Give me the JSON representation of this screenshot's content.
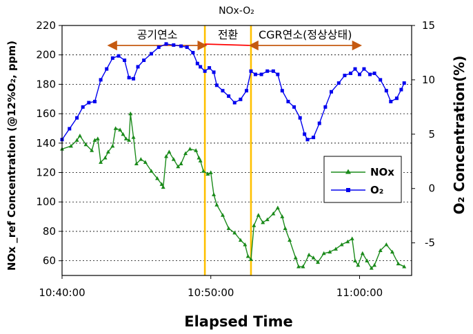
{
  "chart_data": {
    "type": "line",
    "title": "NOx-O₂",
    "xlabel": "Elapsed Time",
    "ylabel": "NOx _ref Concentration (@12%O₂, ppm)",
    "y2label": "O₂ Concentration(%)",
    "x_unit": "minutes after 10:40:00",
    "xlim": [
      0,
      23.5
    ],
    "ylim": [
      50,
      220
    ],
    "y2lim": [
      -8,
      15
    ],
    "x_ticks": [
      0,
      10,
      20
    ],
    "x_tick_labels": [
      "10:40:00",
      "10:50:00",
      "11:00:00"
    ],
    "y_ticks": [
      60,
      80,
      100,
      120,
      140,
      160,
      180,
      200,
      220
    ],
    "y_tick_labels": [
      "60",
      "80",
      "100",
      "120",
      "140",
      "160",
      "180",
      "200",
      "220"
    ],
    "y2_ticks": [
      -5,
      0,
      5,
      10,
      15
    ],
    "y2_tick_labels": [
      "-5",
      "0",
      "5",
      "10",
      "15"
    ],
    "vlines": [
      9.6,
      12.7
    ],
    "phases": [
      {
        "label": "공기연소",
        "start": 3.2,
        "end": 9.6,
        "color": "#c55a11"
      },
      {
        "label": "전환",
        "start": 9.6,
        "end": 12.7,
        "color": "#ff0000"
      },
      {
        "label": "CGR연소(정상상태)",
        "start": 12.7,
        "end": 20.0,
        "color": "#c55a11"
      }
    ],
    "series": [
      {
        "name": "NOx",
        "axis": "left",
        "color": "#1a8a1a",
        "marker": "triangle",
        "points": [
          [
            0,
            136
          ],
          [
            0.6,
            138
          ],
          [
            1.0,
            142
          ],
          [
            1.2,
            145
          ],
          [
            1.6,
            139
          ],
          [
            2.0,
            135
          ],
          [
            2.2,
            142
          ],
          [
            2.4,
            143
          ],
          [
            2.6,
            127
          ],
          [
            2.9,
            130
          ],
          [
            3.1,
            134
          ],
          [
            3.4,
            138
          ],
          [
            3.6,
            150
          ],
          [
            3.9,
            149
          ],
          [
            4.1,
            146
          ],
          [
            4.3,
            143
          ],
          [
            4.5,
            142
          ],
          [
            4.6,
            160
          ],
          [
            4.8,
            144
          ],
          [
            5.0,
            126
          ],
          [
            5.3,
            129
          ],
          [
            5.6,
            127
          ],
          [
            6.0,
            121
          ],
          [
            6.4,
            116
          ],
          [
            6.7,
            112
          ],
          [
            6.8,
            110
          ],
          [
            7.0,
            131
          ],
          [
            7.2,
            134
          ],
          [
            7.5,
            129
          ],
          [
            7.8,
            124
          ],
          [
            8.0,
            126
          ],
          [
            8.3,
            133
          ],
          [
            8.6,
            136
          ],
          [
            9.0,
            135
          ],
          [
            9.2,
            130
          ],
          [
            9.3,
            128
          ],
          [
            9.5,
            121
          ],
          [
            9.8,
            119
          ],
          [
            10.0,
            120
          ],
          [
            10.2,
            105
          ],
          [
            10.4,
            98
          ],
          [
            10.8,
            91
          ],
          [
            11.2,
            82
          ],
          [
            11.6,
            79
          ],
          [
            12.0,
            74
          ],
          [
            12.3,
            71
          ],
          [
            12.5,
            63
          ],
          [
            12.7,
            61
          ],
          [
            12.9,
            84
          ],
          [
            13.2,
            91
          ],
          [
            13.5,
            86
          ],
          [
            13.8,
            88
          ],
          [
            14.2,
            92
          ],
          [
            14.5,
            96
          ],
          [
            14.8,
            90
          ],
          [
            15.0,
            82
          ],
          [
            15.3,
            74
          ],
          [
            15.7,
            62
          ],
          [
            15.9,
            56
          ],
          [
            16.2,
            56
          ],
          [
            16.6,
            64
          ],
          [
            16.9,
            62
          ],
          [
            17.2,
            59
          ],
          [
            17.6,
            65
          ],
          [
            18.0,
            66
          ],
          [
            18.4,
            68
          ],
          [
            18.8,
            71
          ],
          [
            19.2,
            73
          ],
          [
            19.5,
            75
          ],
          [
            19.7,
            60
          ],
          [
            19.9,
            57
          ],
          [
            20.2,
            65
          ],
          [
            20.5,
            60
          ],
          [
            20.8,
            55
          ],
          [
            21.0,
            57
          ],
          [
            21.4,
            67
          ],
          [
            21.8,
            71
          ],
          [
            22.2,
            66
          ],
          [
            22.6,
            58
          ],
          [
            23.0,
            56
          ]
        ]
      },
      {
        "name": "O₂",
        "axis": "right",
        "color": "#0000ee",
        "marker": "square",
        "points": [
          [
            0,
            4.5
          ],
          [
            0.5,
            5.5
          ],
          [
            1.0,
            6.5
          ],
          [
            1.4,
            7.5
          ],
          [
            1.8,
            7.9
          ],
          [
            2.2,
            8.0
          ],
          [
            2.6,
            10.0
          ],
          [
            3.0,
            11.0
          ],
          [
            3.4,
            12.0
          ],
          [
            3.8,
            12.2
          ],
          [
            4.2,
            11.8
          ],
          [
            4.5,
            10.2
          ],
          [
            4.8,
            10.1
          ],
          [
            5.1,
            11.2
          ],
          [
            5.5,
            11.8
          ],
          [
            6.0,
            12.4
          ],
          [
            6.5,
            13.0
          ],
          [
            7.0,
            13.3
          ],
          [
            7.5,
            13.2
          ],
          [
            8.0,
            13.1
          ],
          [
            8.4,
            13.0
          ],
          [
            8.8,
            12.5
          ],
          [
            9.1,
            11.5
          ],
          [
            9.3,
            11.2
          ],
          [
            9.6,
            10.8
          ],
          [
            9.9,
            11.1
          ],
          [
            10.2,
            10.7
          ],
          [
            10.4,
            9.5
          ],
          [
            10.8,
            9.0
          ],
          [
            11.2,
            8.5
          ],
          [
            11.6,
            7.9
          ],
          [
            12.0,
            8.2
          ],
          [
            12.4,
            9.0
          ],
          [
            12.7,
            10.8
          ],
          [
            13.0,
            10.5
          ],
          [
            13.4,
            10.5
          ],
          [
            13.8,
            10.8
          ],
          [
            14.2,
            10.8
          ],
          [
            14.5,
            10.5
          ],
          [
            14.8,
            9.0
          ],
          [
            15.2,
            8.0
          ],
          [
            15.6,
            7.5
          ],
          [
            16.0,
            6.5
          ],
          [
            16.3,
            5.0
          ],
          [
            16.5,
            4.5
          ],
          [
            16.9,
            4.7
          ],
          [
            17.3,
            6.0
          ],
          [
            17.7,
            7.5
          ],
          [
            18.1,
            8.9
          ],
          [
            18.6,
            9.7
          ],
          [
            19.0,
            10.4
          ],
          [
            19.4,
            10.6
          ],
          [
            19.7,
            11.0
          ],
          [
            20.0,
            10.5
          ],
          [
            20.3,
            11.0
          ],
          [
            20.7,
            10.5
          ],
          [
            21.0,
            10.6
          ],
          [
            21.4,
            10.0
          ],
          [
            21.8,
            9.0
          ],
          [
            22.1,
            8.0
          ],
          [
            22.5,
            8.3
          ],
          [
            22.8,
            9.1
          ],
          [
            23.0,
            9.7
          ]
        ]
      }
    ],
    "legend": {
      "position": "right",
      "entries": [
        "NOx",
        "O₂"
      ]
    }
  }
}
